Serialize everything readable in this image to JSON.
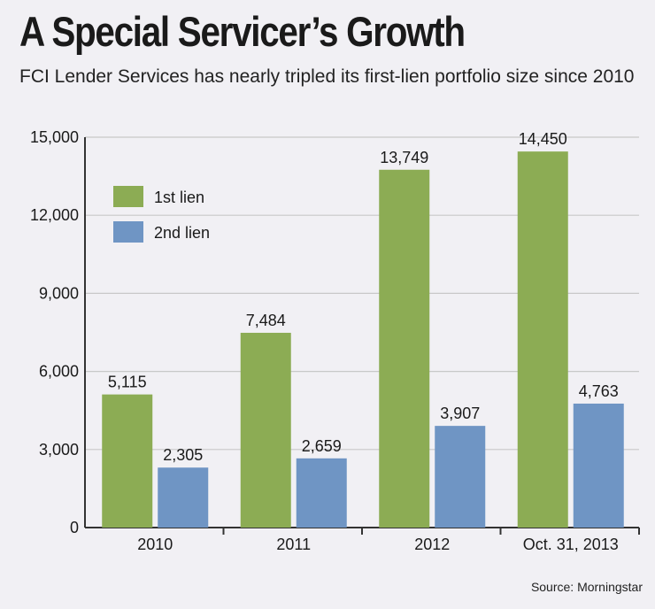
{
  "colors": {
    "first_lien": "#8cac54",
    "second_lien": "#6f95c4",
    "grid": "#c8c8c8",
    "axis": "#333333"
  },
  "source": "Source: Morningstar",
  "chart_data": {
    "type": "bar",
    "title": "A Special Servicer’s Growth",
    "subtitle": "FCI Lender Services has nearly tripled its first-lien portfolio size since 2010",
    "categories": [
      "2010",
      "2011",
      "2012",
      "Oct. 31, 2013"
    ],
    "series": [
      {
        "name": "1st lien",
        "values": [
          5115,
          7484,
          13749,
          14450
        ],
        "labels": [
          "5,115",
          "7,484",
          "13,749",
          "14,450"
        ]
      },
      {
        "name": "2nd lien",
        "values": [
          2305,
          2659,
          3907,
          4763
        ],
        "labels": [
          "2,305",
          "2,659",
          "3,907",
          "4,763"
        ]
      }
    ],
    "ylim": [
      0,
      15000
    ],
    "yticks": [
      0,
      3000,
      6000,
      9000,
      12000,
      15000
    ],
    "ytick_labels": [
      "0",
      "3,000",
      "6,000",
      "9,000",
      "12,000",
      "15,000"
    ],
    "grid": true,
    "legend": "top-left",
    "xlabel": "",
    "ylabel": ""
  }
}
